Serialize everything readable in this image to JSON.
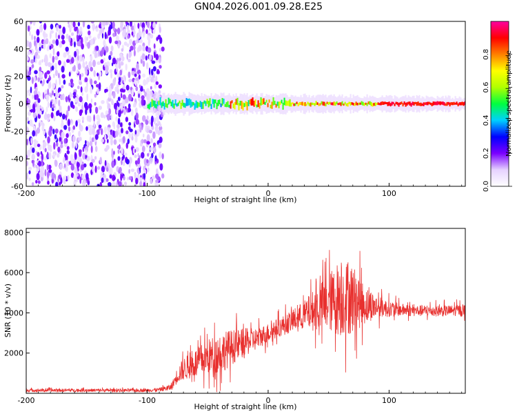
{
  "title": "GN04.2026.001.09.28.E25",
  "chart_data": [
    {
      "type": "heatmap",
      "xlabel": "Height of straight line (km)",
      "ylabel": "Frequency (Hz)",
      "xlim": [
        -200,
        163
      ],
      "ylim": [
        -60,
        60
      ],
      "xticks": [
        -200,
        -100,
        0,
        100
      ],
      "yticks": [
        -60,
        -40,
        -20,
        0,
        20,
        40,
        60
      ],
      "colorbar": {
        "label": "Normalized spectral amplitude",
        "range": [
          0,
          1
        ],
        "ticks": [
          "0.0",
          "0.2",
          "0.4",
          "0.6",
          "0.8"
        ],
        "colors": [
          "#ffffff",
          "#e6d2ff",
          "#7a00ff",
          "#0000ff",
          "#00d0ff",
          "#00ff40",
          "#b0ff00",
          "#ffff00",
          "#ff8000",
          "#ff0000",
          "#ff00a0"
        ]
      },
      "regions": [
        {
          "description": "noise",
          "x_range": [
            -200,
            -87
          ],
          "freq_range": [
            -60,
            60
          ],
          "amplitude": 0.1
        },
        {
          "description": "signal ridge",
          "x_range": [
            -100,
            163
          ],
          "freq_center": 0,
          "amplitude": 0.95
        }
      ]
    },
    {
      "type": "line",
      "xlabel": "Height of straight line (km)",
      "ylabel": "SNR (10 * v/v)",
      "xlim": [
        -200,
        163
      ],
      "ylim": [
        0,
        8200
      ],
      "xticks": [
        -200,
        -100,
        0,
        100
      ],
      "yticks": [
        2000,
        4000,
        6000,
        8000
      ],
      "color": "#e8302e",
      "envelope": {
        "x": [
          -200,
          -100,
          -90,
          -80,
          -75,
          -70,
          -60,
          -50,
          -40,
          -30,
          -20,
          -10,
          0,
          10,
          20,
          30,
          40,
          50,
          60,
          70,
          80,
          90,
          100,
          110,
          120,
          130,
          140,
          150,
          163
        ],
        "mean": [
          150,
          150,
          180,
          300,
          900,
          1200,
          1500,
          1800,
          2000,
          2300,
          2500,
          2700,
          3000,
          3300,
          3600,
          3900,
          4200,
          4500,
          4800,
          4700,
          4400,
          4300,
          4200,
          4150,
          4100,
          4100,
          4100,
          4100,
          4150
        ],
        "spread": [
          100,
          100,
          120,
          200,
          500,
          700,
          900,
          1100,
          1300,
          1100,
          900,
          700,
          600,
          600,
          700,
          900,
          1400,
          1800,
          2500,
          2200,
          1200,
          700,
          500,
          400,
          350,
          350,
          350,
          350,
          350
        ]
      }
    }
  ]
}
